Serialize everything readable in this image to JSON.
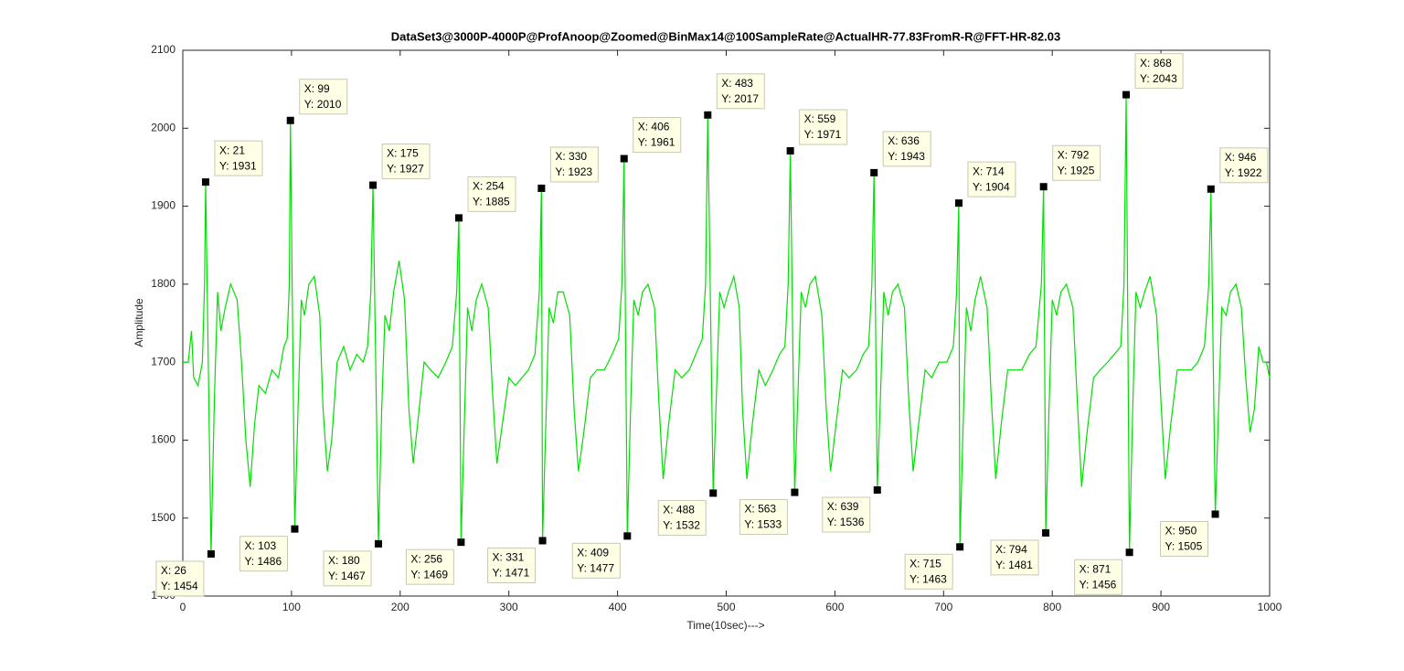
{
  "chart_data": {
    "type": "line",
    "title": "DataSet3@3000P-4000P@ProfAnoop@Zoomed@BinMax14@100SampleRate@ActualHR-77.83FromR-R@FFT-HR-82.03",
    "xlabel": "Time(10sec)--->",
    "ylabel": "Amplitude",
    "color": "#00e000",
    "xlim": [
      0,
      1000
    ],
    "xticks": [
      0,
      100,
      200,
      300,
      400,
      500,
      600,
      700,
      800,
      900,
      1000
    ],
    "ylim": [
      1400,
      2100
    ],
    "yticks": [
      1400,
      1500,
      1600,
      1700,
      1800,
      1900,
      2000,
      2100
    ],
    "x": [
      0,
      5,
      8,
      10,
      14,
      18,
      20,
      21,
      26,
      29,
      32,
      35,
      39,
      44,
      50,
      54,
      58,
      62,
      66,
      70,
      76,
      82,
      88,
      93,
      96,
      98,
      99,
      103,
      106,
      109,
      112,
      116,
      121,
      126,
      129,
      133,
      137,
      142,
      148,
      154,
      160,
      166,
      170,
      173,
      175,
      180,
      183,
      186,
      190,
      194,
      199,
      204,
      208,
      212,
      216,
      222,
      228,
      235,
      242,
      248,
      252,
      254,
      256,
      259,
      262,
      266,
      270,
      275,
      281,
      285,
      289,
      294,
      300,
      306,
      312,
      318,
      324,
      328,
      330,
      331,
      334,
      337,
      341,
      345,
      350,
      356,
      360,
      364,
      369,
      375,
      381,
      388,
      395,
      401,
      404,
      406,
      409,
      412,
      415,
      419,
      423,
      428,
      434,
      438,
      442,
      447,
      453,
      459,
      466,
      472,
      478,
      481,
      483,
      488,
      491,
      494,
      498,
      502,
      507,
      512,
      515,
      519,
      524,
      530,
      536,
      543,
      549,
      554,
      557,
      559,
      563,
      566,
      569,
      573,
      577,
      582,
      588,
      592,
      596,
      601,
      607,
      613,
      620,
      626,
      631,
      634,
      636,
      639,
      642,
      645,
      649,
      653,
      658,
      664,
      668,
      672,
      677,
      683,
      689,
      696,
      703,
      709,
      712,
      714,
      715,
      718,
      721,
      725,
      729,
      734,
      740,
      744,
      748,
      753,
      759,
      765,
      772,
      779,
      785,
      790,
      792,
      794,
      797,
      800,
      804,
      808,
      813,
      819,
      823,
      827,
      832,
      838,
      844,
      851,
      857,
      863,
      866,
      868,
      871,
      874,
      877,
      881,
      885,
      890,
      896,
      900,
      904,
      909,
      915,
      921,
      928,
      934,
      940,
      944,
      946,
      950,
      953,
      956,
      960,
      964,
      969,
      974,
      978,
      982,
      986,
      990,
      994,
      997,
      1000
    ],
    "values": [
      1700,
      1700,
      1740,
      1680,
      1670,
      1700,
      1800,
      1931,
      1454,
      1650,
      1790,
      1740,
      1770,
      1800,
      1780,
      1700,
      1600,
      1540,
      1620,
      1670,
      1660,
      1690,
      1680,
      1720,
      1730,
      1800,
      2010,
      1486,
      1640,
      1780,
      1760,
      1800,
      1810,
      1760,
      1640,
      1560,
      1600,
      1700,
      1720,
      1690,
      1710,
      1700,
      1720,
      1790,
      1927,
      1467,
      1640,
      1760,
      1740,
      1790,
      1830,
      1780,
      1640,
      1570,
      1620,
      1700,
      1690,
      1680,
      1700,
      1720,
      1790,
      1885,
      1469,
      1620,
      1770,
      1740,
      1780,
      1800,
      1770,
      1660,
      1570,
      1620,
      1680,
      1670,
      1680,
      1690,
      1710,
      1790,
      1923,
      1471,
      1620,
      1770,
      1750,
      1790,
      1790,
      1760,
      1640,
      1560,
      1610,
      1680,
      1690,
      1690,
      1710,
      1730,
      1800,
      1961,
      1477,
      1640,
      1780,
      1760,
      1790,
      1800,
      1770,
      1650,
      1550,
      1620,
      1690,
      1680,
      1690,
      1710,
      1730,
      1800,
      2017,
      1532,
      1660,
      1790,
      1770,
      1790,
      1810,
      1770,
      1640,
      1550,
      1620,
      1690,
      1670,
      1690,
      1710,
      1720,
      1800,
      1971,
      1533,
      1660,
      1790,
      1770,
      1800,
      1810,
      1760,
      1640,
      1560,
      1620,
      1690,
      1680,
      1690,
      1710,
      1720,
      1800,
      1943,
      1536,
      1660,
      1790,
      1760,
      1790,
      1800,
      1770,
      1650,
      1560,
      1620,
      1690,
      1680,
      1700,
      1700,
      1720,
      1790,
      1904,
      1463,
      1620,
      1770,
      1740,
      1780,
      1810,
      1770,
      1650,
      1550,
      1620,
      1690,
      1690,
      1690,
      1710,
      1720,
      1800,
      1925,
      1481,
      1640,
      1780,
      1760,
      1790,
      1800,
      1770,
      1650,
      1540,
      1610,
      1680,
      1690,
      1700,
      1710,
      1720,
      1800,
      2043,
      1456,
      1640,
      1790,
      1770,
      1790,
      1810,
      1760,
      1650,
      1550,
      1620,
      1690,
      1690,
      1690,
      1700,
      1720,
      1800,
      1922,
      1505,
      1640,
      1770,
      1760,
      1790,
      1800,
      1770,
      1680,
      1610,
      1640,
      1720,
      1700,
      1700,
      1680
    ],
    "data_tips": [
      {
        "x": 21,
        "y": 1931,
        "x_label": "X: 21",
        "y_label": "Y: 1931"
      },
      {
        "x": 99,
        "y": 2010,
        "x_label": "X: 99",
        "y_label": "Y: 2010"
      },
      {
        "x": 175,
        "y": 1927,
        "x_label": "X: 175",
        "y_label": "Y: 1927"
      },
      {
        "x": 254,
        "y": 1885,
        "x_label": "X: 254",
        "y_label": "Y: 1885"
      },
      {
        "x": 330,
        "y": 1923,
        "x_label": "X: 330",
        "y_label": "Y: 1923"
      },
      {
        "x": 406,
        "y": 1961,
        "x_label": "X: 406",
        "y_label": "Y: 1961"
      },
      {
        "x": 483,
        "y": 2017,
        "x_label": "X: 483",
        "y_label": "Y: 2017"
      },
      {
        "x": 559,
        "y": 1971,
        "x_label": "X: 559",
        "y_label": "Y: 1971"
      },
      {
        "x": 636,
        "y": 1943,
        "x_label": "X: 636",
        "y_label": "Y: 1943"
      },
      {
        "x": 714,
        "y": 1904,
        "x_label": "X: 714",
        "y_label": "Y: 1904"
      },
      {
        "x": 792,
        "y": 1925,
        "x_label": "X: 792",
        "y_label": "Y: 1925"
      },
      {
        "x": 868,
        "y": 2043,
        "x_label": "X: 868",
        "y_label": "Y: 2043"
      },
      {
        "x": 946,
        "y": 1922,
        "x_label": "X: 946",
        "y_label": "Y: 1922"
      },
      {
        "x": 26,
        "y": 1454,
        "x_label": "X: 26",
        "y_label": "Y: 1454"
      },
      {
        "x": 103,
        "y": 1486,
        "x_label": "X: 103",
        "y_label": "Y: 1486"
      },
      {
        "x": 180,
        "y": 1467,
        "x_label": "X: 180",
        "y_label": "Y: 1467"
      },
      {
        "x": 256,
        "y": 1469,
        "x_label": "X: 256",
        "y_label": "Y: 1469"
      },
      {
        "x": 331,
        "y": 1471,
        "x_label": "X: 331",
        "y_label": "Y: 1471"
      },
      {
        "x": 409,
        "y": 1477,
        "x_label": "X: 409",
        "y_label": "Y: 1477"
      },
      {
        "x": 488,
        "y": 1532,
        "x_label": "X: 488",
        "y_label": "Y: 1532"
      },
      {
        "x": 563,
        "y": 1533,
        "x_label": "X: 563",
        "y_label": "Y: 1533"
      },
      {
        "x": 639,
        "y": 1536,
        "x_label": "X: 639",
        "y_label": "Y: 1536"
      },
      {
        "x": 715,
        "y": 1463,
        "x_label": "X: 715",
        "y_label": "Y: 1463"
      },
      {
        "x": 794,
        "y": 1481,
        "x_label": "X: 794",
        "y_label": "Y: 1481"
      },
      {
        "x": 871,
        "y": 1456,
        "x_label": "X: 871",
        "y_label": "Y: 1456"
      },
      {
        "x": 950,
        "y": 1505,
        "x_label": "X: 950",
        "y_label": "Y: 1505"
      }
    ]
  }
}
